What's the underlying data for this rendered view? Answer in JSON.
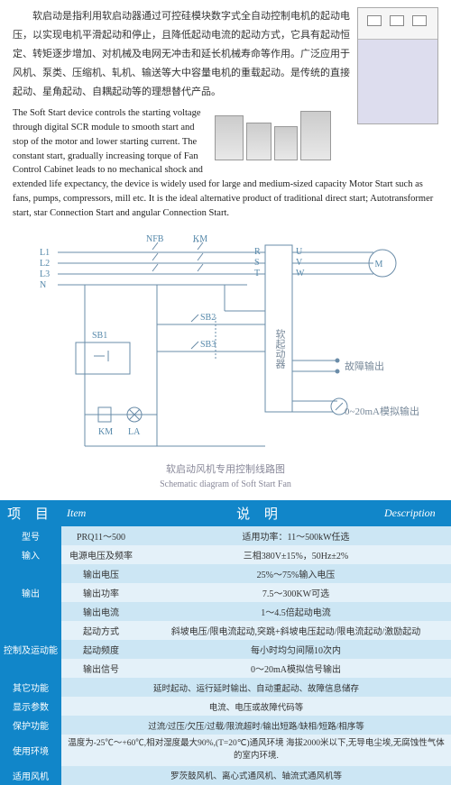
{
  "cn_para": "软启动是指利用软启动器通过可控硅模块数字式全自动控制电机的起动电压，以实现电机平滑起动和停止，且降低起动电流的起动方式，它具有起动恒定、转矩逐步增加、对机械及电网无冲击和延长机械寿命等作用。广泛应用于风机、泵类、压缩机、轧机、输送等大中容量电机的重载起动。是传统的直接起动、星角起动、自耦起动等的理想替代产品。",
  "en_para": "The Soft Start device controls the starting voltage through digital SCR module to smooth start and stop of the motor and lower starting current. The constant start, gradually increasing torque of Fan Control Cabinet leads to no mechanical shock and extended life expectancy, the device is widely used for large and medium-sized capacity Motor Start such as fans, pumps, compressors, mill etc. It is the ideal alternative product of traditional direct start; Autotransformer start, star Connection Start and angular Connection Start.",
  "diagram": {
    "lines": [
      "L1",
      "L2",
      "L3",
      "N"
    ],
    "nfb": "NFB",
    "km": "KM",
    "rst": [
      "R",
      "S",
      "T"
    ],
    "uvw": [
      "U",
      "V",
      "W"
    ],
    "sb1": "SB1",
    "sb2": "SB2",
    "sb3": "SB3",
    "km2": "KM",
    "la": "LA",
    "soft": "软起动器",
    "fault": "故障输出",
    "analog": "0~20mA模拟输出",
    "motor": "M",
    "caption_cn": "软启动风机专用控制线路图",
    "caption_en": "Schematic diagram of Soft Start Fan",
    "stroke": "#6a8ca8"
  },
  "table": {
    "head": {
      "item_cn": "项 目",
      "item_en": "Item",
      "desc_cn": "说  明",
      "desc_en": "Description"
    },
    "rows": [
      {
        "label": "型号",
        "mid": "PRQ11～500",
        "val": "适用功率：11～500kW任选",
        "span": false
      },
      {
        "label": "输入",
        "mid": "电源电压及频率",
        "val": "三相380V±15%，50Hz±2%",
        "span": false
      },
      {
        "label": "输出",
        "mid": "输出电压",
        "val": "25%～75%输入电压",
        "span": false,
        "rowspan": 3
      },
      {
        "mid": "输出功率",
        "val": "7.5～300KW可选"
      },
      {
        "mid": "输出电流",
        "val": "1～4.5倍起动电流"
      },
      {
        "label": "控制及运动能",
        "mid": "起动方式",
        "val": "斜坡电压/限电流起动,突跳+斜坡电压起动/限电流起动/激励起动",
        "span": false,
        "rowspan": 3
      },
      {
        "mid": "起动频度",
        "val": "每小时均匀间隔10次内"
      },
      {
        "mid": "输出信号",
        "val": "0～20mA模拟信号输出"
      },
      {
        "label": "其它功能",
        "val": "延时起动、运行延时输出、自动重起动、故障信息储存",
        "span": true
      },
      {
        "label": "显示参数",
        "val": "电流、电压或故障代码等",
        "span": true
      },
      {
        "label": "保护功能",
        "val": "过流/过压/欠压/过载/限流超时/输出短路/缺相/短路/相序等",
        "span": true
      },
      {
        "label": "使用环境",
        "val": "温度为-25℃～+60℃,相对湿度最大90%,(T=20℃)通风环境 海拔2000米以下,无导电尘埃,无腐蚀性气体的室内环境.",
        "span": true,
        "multi": true
      },
      {
        "label": "适用风机",
        "val": "罗茨鼓风机、离心式通风机、轴流式通风机等",
        "span": true
      }
    ]
  }
}
